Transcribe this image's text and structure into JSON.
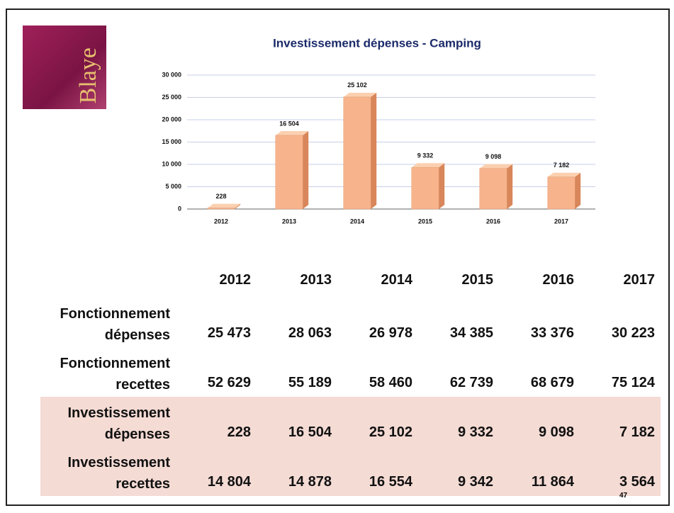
{
  "logo": "Blaye",
  "chart_data": {
    "type": "bar",
    "title": "Investissement dépenses - Camping",
    "categories": [
      "2012",
      "2013",
      "2014",
      "2015",
      "2016",
      "2017"
    ],
    "values": [
      228,
      16504,
      25102,
      9332,
      9098,
      7182
    ],
    "value_labels": [
      "228",
      "16 504",
      "25 102",
      "9 332",
      "9 098",
      "7 182"
    ],
    "color": "#f7b48c",
    "ylim": [
      0,
      30000
    ],
    "yticks": [
      0,
      {
        "value": 5000,
        "label": "5 000"
      },
      {
        "value": 10000,
        "label": "10 000"
      },
      {
        "value": 15000,
        "label": "15 000"
      },
      {
        "value": 20000,
        "label": "20 000"
      },
      {
        "value": 25000,
        "label": "25 000"
      },
      {
        "value": 30000,
        "label": "30 000"
      }
    ],
    "grid": true
  },
  "table": {
    "header": [
      "2012",
      "2013",
      "2014",
      "2015",
      "2016",
      "2017"
    ],
    "rows": [
      {
        "label": "Fonctionnement dépenses",
        "cells": [
          "25 473",
          "28 063",
          "26 978",
          "34 385",
          "33 376",
          "30 223"
        ]
      },
      {
        "label": "Fonctionnement recettes",
        "cells": [
          "52 629",
          "55 189",
          "58 460",
          "62 739",
          "68 679",
          "75 124"
        ]
      },
      {
        "label": "Investissement dépenses",
        "cells": [
          "228",
          "16 504",
          "25 102",
          "9 332",
          "9 098",
          "7 182"
        ]
      },
      {
        "label": "Investissement recettes",
        "cells": [
          "14 804",
          "14 878",
          "16 554",
          "9 342",
          "11 864",
          "3 564"
        ]
      }
    ]
  },
  "page_number": "47"
}
